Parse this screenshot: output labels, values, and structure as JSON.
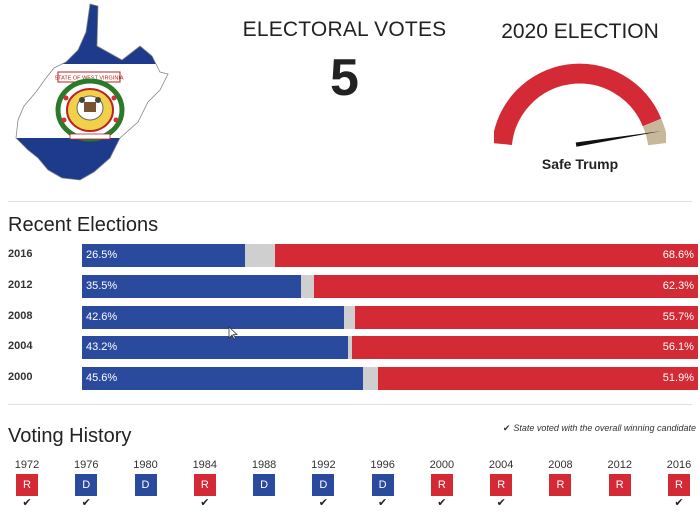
{
  "header": {
    "electoral_votes_title": "ELECTORAL VOTES",
    "electoral_votes_value": "5",
    "forecast_title": "2020 ELECTION",
    "forecast_label": "Safe Trump",
    "seal_text": "STATE OF WEST VIRGINIA"
  },
  "gauge": {
    "needle_fraction": 0.95
  },
  "recent_elections": {
    "title": "Recent Elections",
    "rows": [
      {
        "year": "2016",
        "dem": 26.5,
        "rep": 68.6,
        "dem_label": "26.5%",
        "rep_label": "68.6%"
      },
      {
        "year": "2012",
        "dem": 35.5,
        "rep": 62.3,
        "dem_label": "35.5%",
        "rep_label": "62.3%"
      },
      {
        "year": "2008",
        "dem": 42.6,
        "rep": 55.7,
        "dem_label": "42.6%",
        "rep_label": "55.7%"
      },
      {
        "year": "2004",
        "dem": 43.2,
        "rep": 56.1,
        "dem_label": "43.2%",
        "rep_label": "56.1%"
      },
      {
        "year": "2000",
        "dem": 45.6,
        "rep": 51.9,
        "dem_label": "45.6%",
        "rep_label": "51.9%"
      }
    ]
  },
  "voting_history": {
    "title": "Voting History",
    "legend": "State voted with the overall winning candidate",
    "legend_icon": "check-icon",
    "items": [
      {
        "year": "1972",
        "party": "R",
        "winner": true
      },
      {
        "year": "1976",
        "party": "D",
        "winner": true
      },
      {
        "year": "1980",
        "party": "D",
        "winner": false
      },
      {
        "year": "1984",
        "party": "R",
        "winner": true
      },
      {
        "year": "1988",
        "party": "D",
        "winner": false
      },
      {
        "year": "1992",
        "party": "D",
        "winner": true
      },
      {
        "year": "1996",
        "party": "D",
        "winner": true
      },
      {
        "year": "2000",
        "party": "R",
        "winner": true
      },
      {
        "year": "2004",
        "party": "R",
        "winner": true
      },
      {
        "year": "2008",
        "party": "R",
        "winner": false
      },
      {
        "year": "2012",
        "party": "R",
        "winner": false
      },
      {
        "year": "2016",
        "party": "R",
        "winner": true
      }
    ]
  },
  "colors": {
    "democrat": "#2a4a9e",
    "republican": "#d42a35",
    "other": "#cfcfcf",
    "gauge_safe_dem": "#c8b89a"
  }
}
